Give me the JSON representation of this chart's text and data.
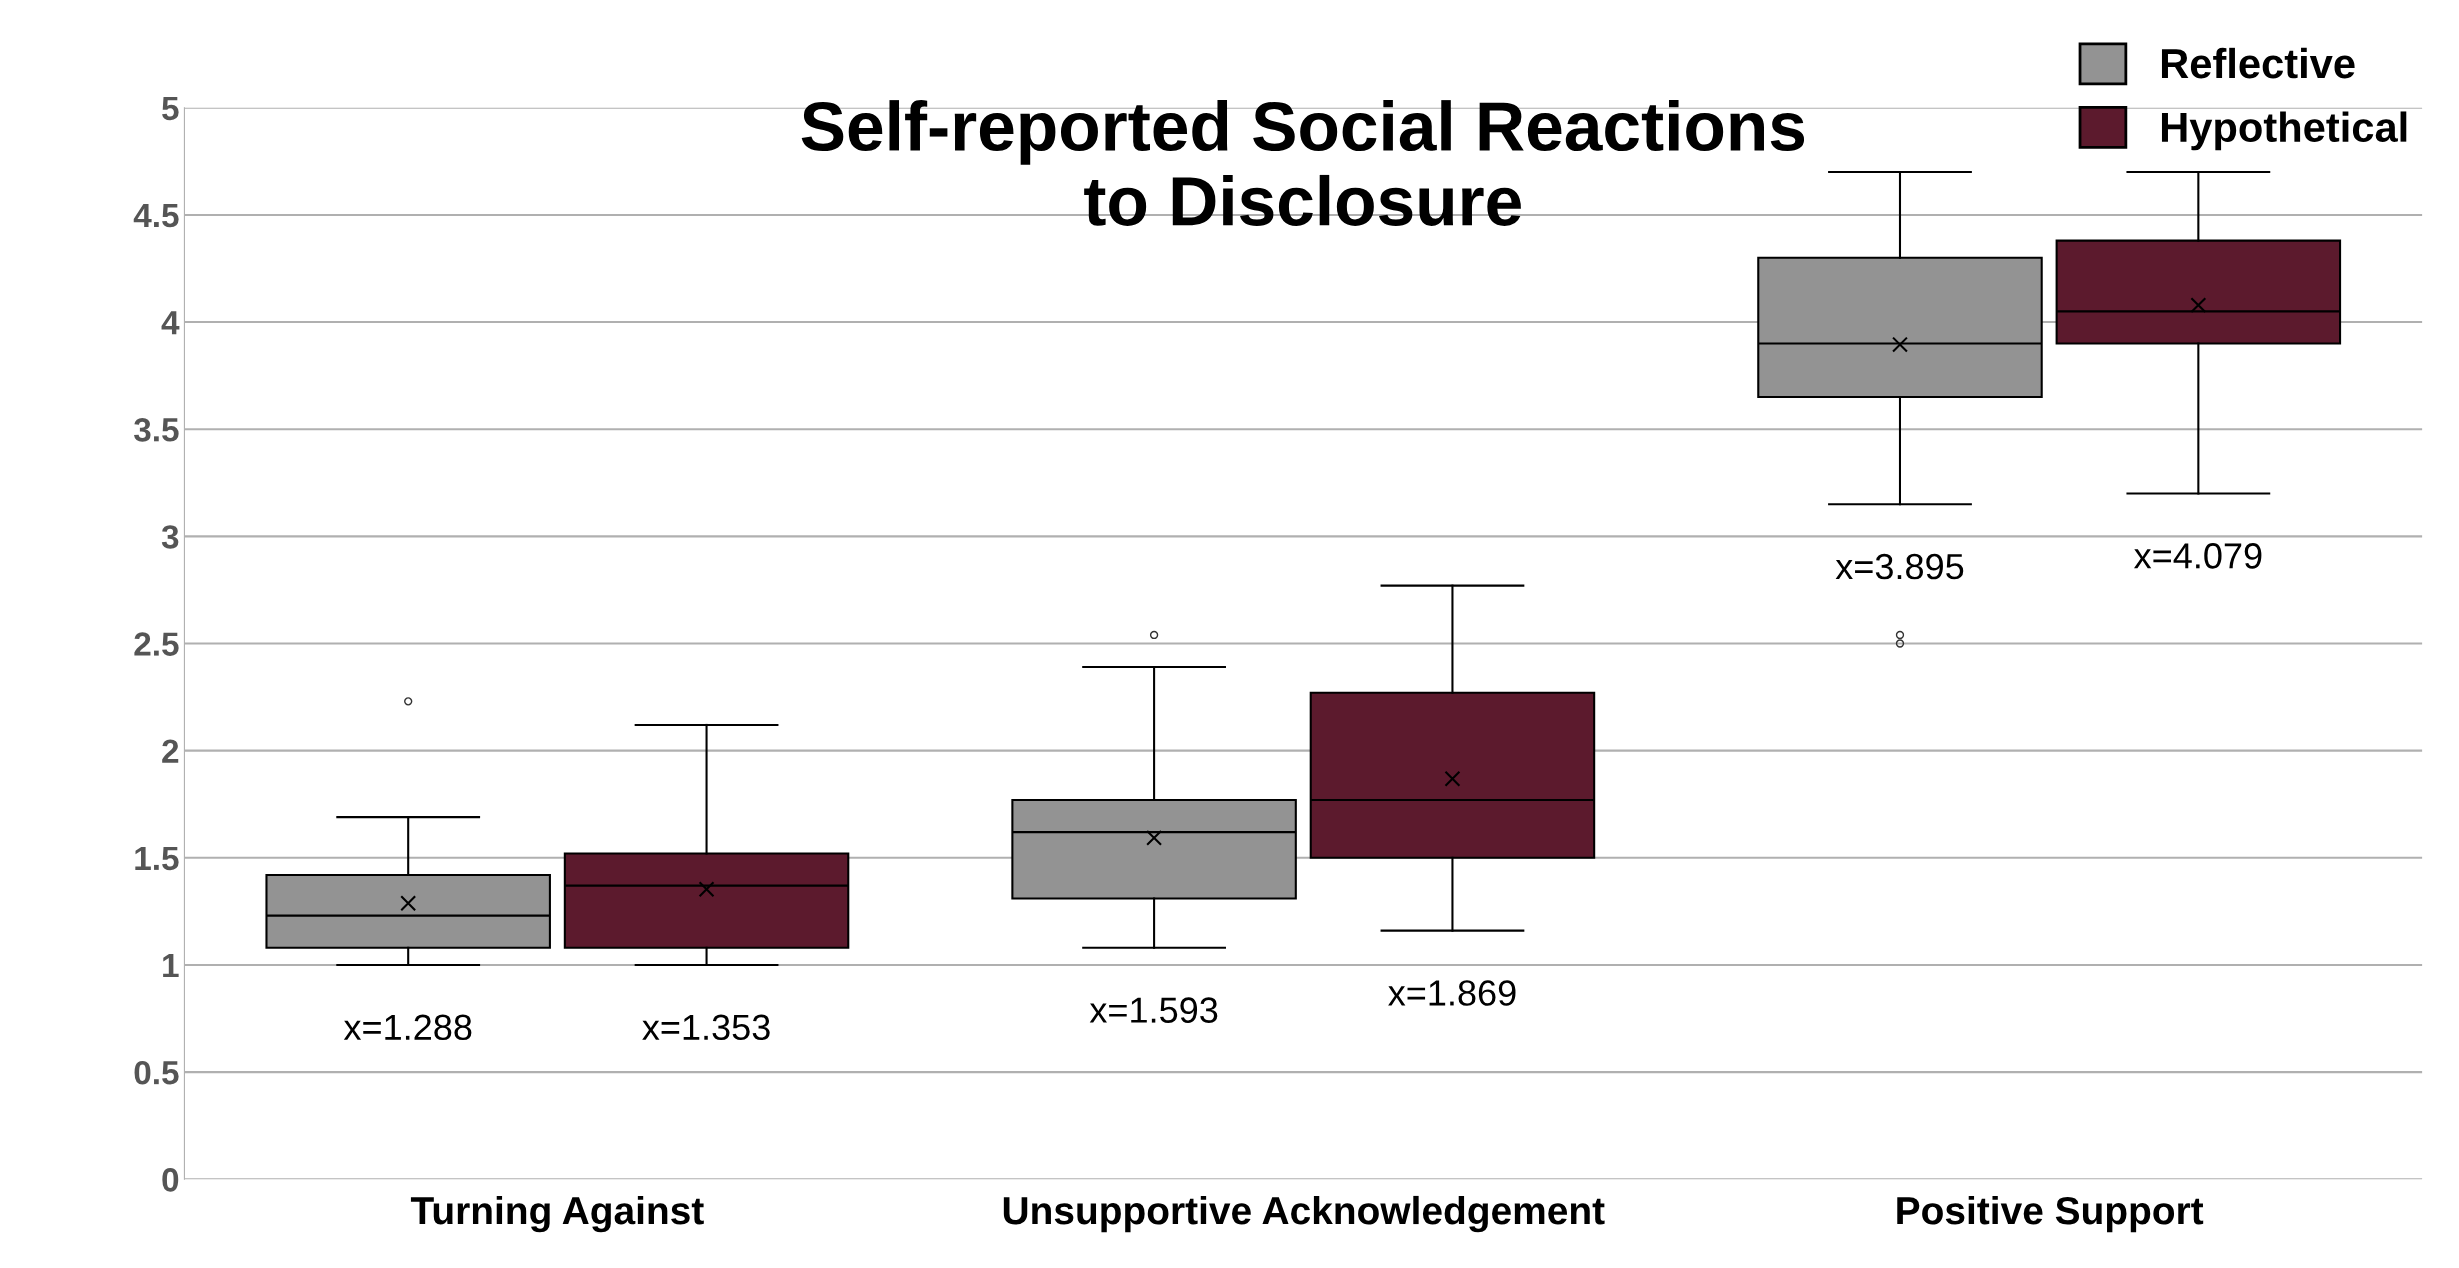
{
  "chart_data": {
    "type": "box",
    "title": "Self-reported Social Reactions\nto Disclosure",
    "categories": [
      "Turning Against",
      "Unsupportive Acknowledgement",
      "Positive Support"
    ],
    "series": [
      {
        "name": "Reflective",
        "color": "#939393",
        "boxes": [
          {
            "low": 1.0,
            "q1": 1.08,
            "median": 1.23,
            "q3": 1.42,
            "high": 1.69,
            "mean": 1.288,
            "outliers": [
              2.23
            ]
          },
          {
            "low": 1.08,
            "q1": 1.31,
            "median": 1.62,
            "q3": 1.77,
            "high": 2.39,
            "mean": 1.593,
            "outliers": [
              2.54
            ]
          },
          {
            "low": 3.15,
            "q1": 3.65,
            "median": 3.9,
            "q3": 4.3,
            "high": 4.7,
            "mean": 3.895,
            "outliers": [
              2.5,
              2.54
            ]
          }
        ],
        "value_labels": [
          "x=1.288",
          "x=1.593",
          "x=3.895"
        ]
      },
      {
        "name": "Hypothetical",
        "color": "#5c1a2d",
        "boxes": [
          {
            "low": 1.0,
            "q1": 1.08,
            "median": 1.37,
            "q3": 1.52,
            "high": 2.12,
            "mean": 1.353
          },
          {
            "low": 1.16,
            "q1": 1.5,
            "median": 1.77,
            "q3": 2.27,
            "high": 2.77,
            "mean": 1.869
          },
          {
            "low": 3.2,
            "q1": 3.9,
            "median": 4.05,
            "q3": 4.38,
            "high": 4.7,
            "mean": 4.079
          }
        ],
        "value_labels": [
          "x=1.353",
          "x=1.869",
          "x=4.079"
        ]
      }
    ],
    "ylim": [
      0,
      5
    ],
    "yticks": [
      0,
      0.5,
      1,
      1.5,
      2,
      2.5,
      3,
      3.5,
      4,
      4.5,
      5
    ],
    "grid": "y",
    "legend": "top right"
  }
}
